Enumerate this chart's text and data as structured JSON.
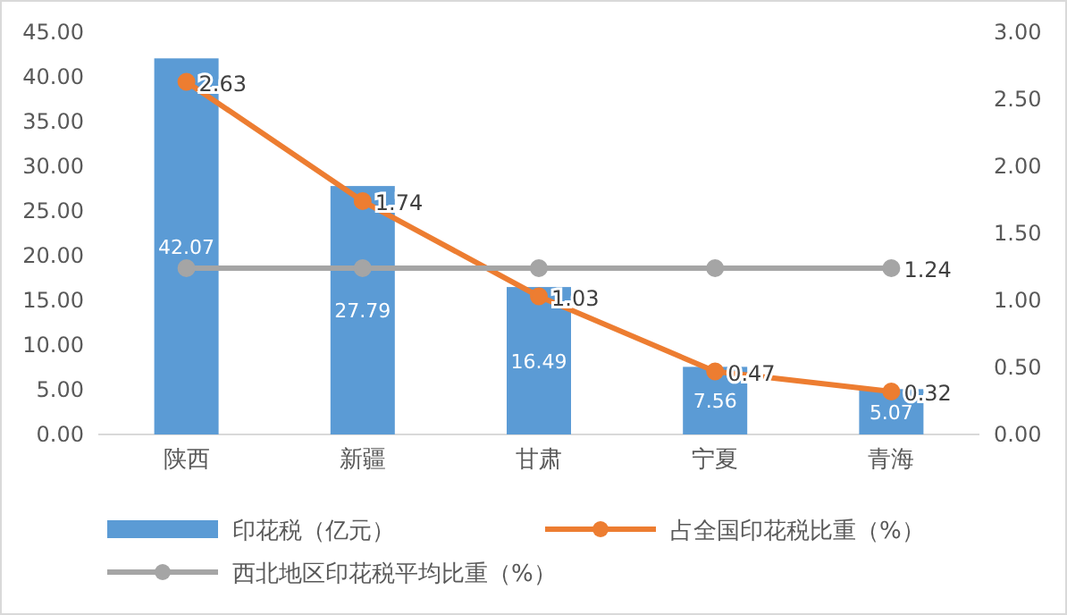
{
  "chart_data": {
    "type": "bar",
    "categories": [
      "陕西",
      "新疆",
      "甘肃",
      "宁夏",
      "青海"
    ],
    "series": [
      {
        "name": "印花税（亿元）",
        "type": "bar",
        "color": "#5b9bd5",
        "values": [
          42.07,
          27.79,
          16.49,
          7.56,
          5.07
        ],
        "value_labels": [
          "42.07",
          "27.79",
          "16.49",
          "7.56",
          "5.07"
        ]
      },
      {
        "name": "占全国印花税比重（%）",
        "type": "line",
        "axis": "y2",
        "color": "#ed7d31",
        "marker": "circle",
        "values": [
          2.63,
          1.74,
          1.03,
          0.47,
          0.32
        ],
        "value_labels": [
          "2.63",
          "1.74",
          "1.03",
          "0.47",
          "0.32"
        ]
      },
      {
        "name": "西北地区印花税平均比重（%）",
        "type": "line",
        "axis": "y2",
        "color": "#a5a5a5",
        "marker": "circle",
        "values": [
          1.24,
          1.24,
          1.24,
          1.24,
          1.24
        ],
        "value_labels": [
          null,
          null,
          null,
          null,
          "1.24"
        ]
      }
    ],
    "ylim": [
      0,
      45
    ],
    "yticks": [
      {
        "value": 0,
        "label": "0.00"
      },
      {
        "value": 5,
        "label": "5.00"
      },
      {
        "value": 10,
        "label": "10.00"
      },
      {
        "value": 15,
        "label": "15.00"
      },
      {
        "value": 20,
        "label": "20.00"
      },
      {
        "value": 25,
        "label": "25.00"
      },
      {
        "value": 30,
        "label": "30.00"
      },
      {
        "value": 35,
        "label": "35.00"
      },
      {
        "value": 40,
        "label": "40.00"
      },
      {
        "value": 45,
        "label": "45.00"
      }
    ],
    "y2lim": [
      0,
      3
    ],
    "y2ticks": [
      {
        "value": 0,
        "label": "0.00"
      },
      {
        "value": 0.5,
        "label": "0.50"
      },
      {
        "value": 1,
        "label": "1.00"
      },
      {
        "value": 1.5,
        "label": "1.50"
      },
      {
        "value": 2,
        "label": "2.00"
      },
      {
        "value": 2.5,
        "label": "2.50"
      },
      {
        "value": 3,
        "label": "3.00"
      }
    ],
    "legend": "bottom"
  }
}
